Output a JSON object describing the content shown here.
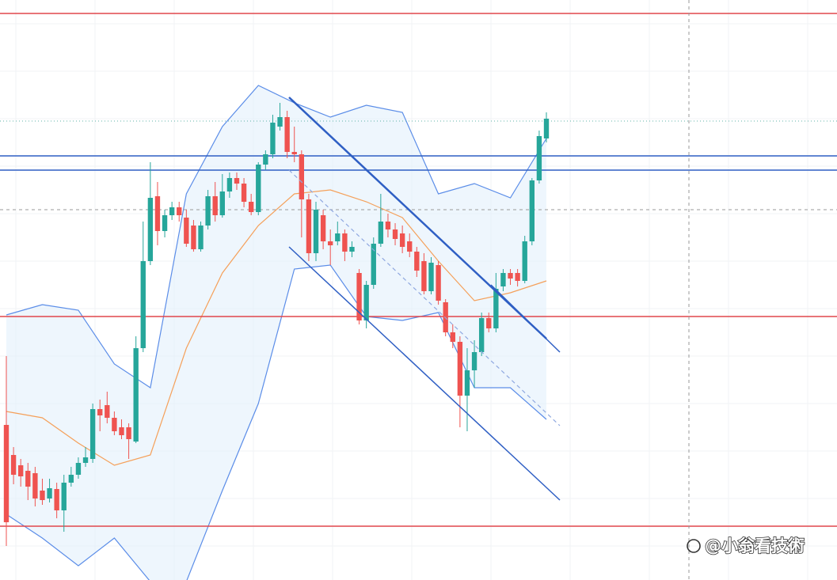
{
  "chart_data": {
    "type": "candlestick",
    "watermark": "@小翁看技術",
    "ylim": [
      0,
      733
    ],
    "grid": true,
    "colors": {
      "up": "#26a69a",
      "down": "#ef5350",
      "band": "#5b8de8",
      "band_fill": "#e3f0fb",
      "ma": "#f5a05a"
    },
    "open": [
      196,
      158,
      145,
      138,
      135,
      113,
      103,
      115,
      88,
      123,
      133,
      148,
      153,
      216,
      221,
      205,
      193,
      193,
      175,
      293,
      403,
      485,
      441,
      461,
      471,
      458,
      448,
      418,
      448,
      485,
      461,
      491,
      508,
      501,
      478,
      465,
      525,
      538,
      573,
      585,
      541,
      538,
      481,
      413,
      461,
      428,
      428,
      438,
      415,
      388,
      328,
      373,
      425,
      453,
      443,
      438,
      428,
      415,
      403,
      365,
      398,
      351,
      313,
      301,
      233,
      265,
      288,
      331,
      318,
      371,
      388,
      388,
      378,
      428,
      505,
      558
    ],
    "high": [
      283,
      168,
      153,
      148,
      143,
      128,
      128,
      123,
      133,
      143,
      155,
      168,
      223,
      228,
      238,
      213,
      203,
      198,
      308,
      453,
      528,
      503,
      468,
      478,
      478,
      468,
      455,
      453,
      493,
      503,
      513,
      515,
      515,
      508,
      488,
      528,
      543,
      588,
      603,
      593,
      573,
      543,
      488,
      478,
      468,
      443,
      453,
      443,
      428,
      393,
      378,
      433,
      488,
      463,
      451,
      448,
      438,
      421,
      413,
      408,
      403,
      355,
      323,
      308,
      293,
      303,
      338,
      338,
      388,
      393,
      393,
      393,
      435,
      508,
      568,
      591
    ],
    "low": [
      43,
      121,
      118,
      101,
      93,
      95,
      98,
      78,
      61,
      118,
      128,
      143,
      148,
      188,
      198,
      183,
      178,
      153,
      173,
      288,
      398,
      423,
      433,
      455,
      453,
      421,
      415,
      415,
      443,
      453,
      458,
      483,
      493,
      471,
      461,
      461,
      518,
      533,
      568,
      533,
      528,
      433,
      403,
      403,
      418,
      398,
      423,
      403,
      408,
      323,
      318,
      368,
      421,
      433,
      423,
      413,
      408,
      383,
      361,
      361,
      348,
      308,
      293,
      193,
      188,
      243,
      283,
      313,
      313,
      365,
      373,
      371,
      375,
      423,
      501,
      553
    ],
    "close": [
      73,
      133,
      131,
      118,
      103,
      101,
      116,
      88,
      123,
      133,
      148,
      155,
      216,
      208,
      205,
      188,
      183,
      178,
      293,
      403,
      483,
      441,
      461,
      471,
      461,
      425,
      418,
      448,
      485,
      461,
      491,
      508,
      501,
      478,
      465,
      525,
      538,
      578,
      585,
      541,
      538,
      481,
      413,
      468,
      428,
      423,
      438,
      415,
      421,
      328,
      373,
      425,
      453,
      443,
      431,
      421,
      415,
      391,
      365,
      401,
      353,
      313,
      301,
      233,
      265,
      288,
      331,
      318,
      368,
      388,
      381,
      378,
      428,
      505,
      561,
      583
    ],
    "bands": {
      "x": [
        0,
        5,
        10,
        15,
        20,
        25,
        30,
        35,
        40,
        45,
        50,
        55,
        60,
        65,
        70,
        75
      ],
      "upper": [
        335,
        348,
        341,
        273,
        243,
        488,
        573,
        625,
        603,
        585,
        600,
        591,
        488,
        501,
        483,
        558
      ],
      "middle": [
        213,
        205,
        173,
        145,
        158,
        293,
        388,
        448,
        488,
        493,
        478,
        458,
        403,
        353,
        363,
        378
      ],
      "lower": [
        83,
        53,
        18,
        53,
        -2,
        -2,
        113,
        223,
        393,
        398,
        333,
        328,
        338,
        243,
        243,
        203
      ]
    },
    "hlines": [
      {
        "value": 716,
        "color": "#e0474c"
      },
      {
        "value": 333,
        "color": "#e0474c"
      },
      {
        "value": 68,
        "color": "#e0474c"
      },
      {
        "value": 536,
        "color": "#2f5fc4"
      },
      {
        "value": 518,
        "color": "#2f5fc4"
      }
    ]
  }
}
